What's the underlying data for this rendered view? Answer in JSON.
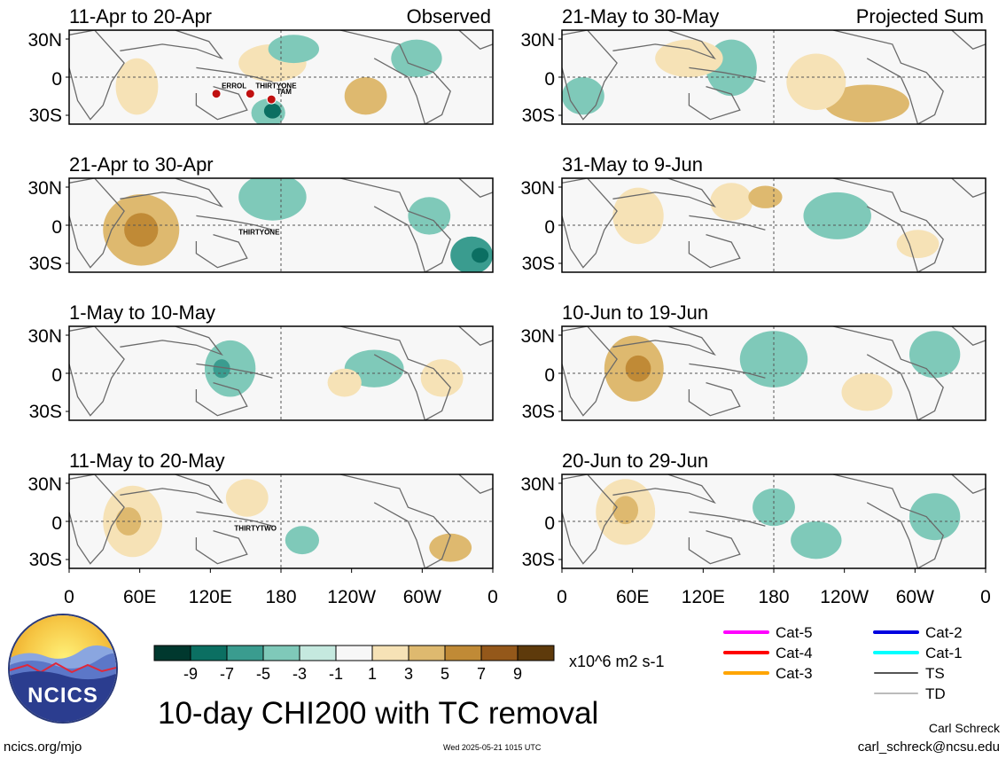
{
  "panels": [
    {
      "date_range": "11-Apr to 20-Apr",
      "section_label": "Observed",
      "storms": [
        "ERROL",
        "TAM",
        "THIRTYONE"
      ]
    },
    {
      "date_range": "21-May to 30-May",
      "section_label": "Projected Sum",
      "storms": []
    },
    {
      "date_range": "21-Apr to 30-Apr",
      "storms": [
        "THIRTYONE"
      ]
    },
    {
      "date_range": "31-May to 9-Jun",
      "storms": []
    },
    {
      "date_range": "1-May to 10-May",
      "storms": []
    },
    {
      "date_range": "10-Jun to 19-Jun",
      "storms": []
    },
    {
      "date_range": "11-May to 20-May",
      "storms": [
        "THIRTYTWO"
      ]
    },
    {
      "date_range": "20-Jun to 29-Jun",
      "storms": []
    }
  ],
  "lat_labels": [
    "30N",
    "0",
    "30S"
  ],
  "lon_labels": [
    "0",
    "60E",
    "120E",
    "180",
    "120W",
    "60W",
    "0"
  ],
  "colorbar": {
    "units": "x10^6 m2 s-1",
    "ticks": [
      "-9",
      "-7",
      "-5",
      "-3",
      "-1",
      "1",
      "3",
      "5",
      "7",
      "9"
    ],
    "colors": [
      "#00382e",
      "#0b6f62",
      "#3a9c8f",
      "#7fc9b9",
      "#c5e9df",
      "#f7f7f7",
      "#f6e2b6",
      "#deb96f",
      "#c08a36",
      "#94581a",
      "#5e3a0b"
    ]
  },
  "legend": {
    "items": [
      {
        "label": "Cat-5",
        "color": "#ff00ff"
      },
      {
        "label": "Cat-2",
        "color": "#0000e0"
      },
      {
        "label": "Cat-4",
        "color": "#ff0000"
      },
      {
        "label": "Cat-1",
        "color": "#00ffff"
      },
      {
        "label": "Cat-3",
        "color": "#ffa500"
      },
      {
        "label": "TS",
        "color": "#555555"
      },
      {
        "label": "TD",
        "color": "#bbbbbb"
      }
    ]
  },
  "logo": {
    "label": "NCICS"
  },
  "title": "10-day CHI200 with TC removal",
  "footer": {
    "url": "ncics.org/mjo",
    "timestamp": "Wed 2025-05-21 1015 UTC"
  },
  "credit": {
    "name": "Carl Schreck",
    "email": "carl_schreck@ncsu.edu"
  }
}
